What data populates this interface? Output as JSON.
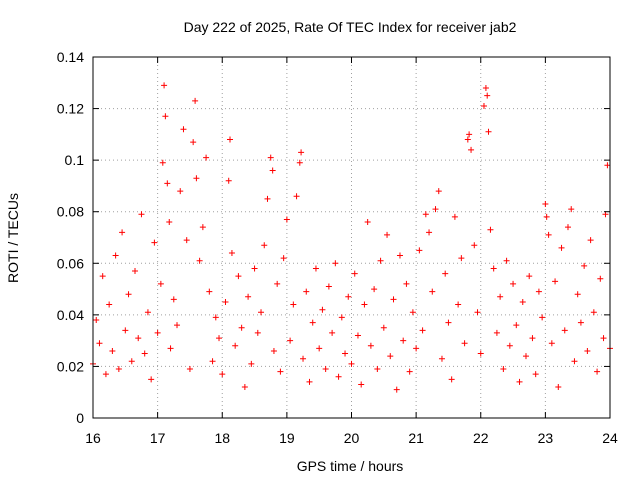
{
  "chart_data": {
    "type": "scatter",
    "title": "Day 222 of 2025, Rate Of TEC Index for receiver jab2",
    "xlabel": "GPS time / hours",
    "ylabel": "ROTI / TECUs",
    "xlim": [
      16,
      24
    ],
    "ylim": [
      0,
      0.14
    ],
    "x_ticks": [
      "16",
      "17",
      "18",
      "19",
      "20",
      "21",
      "22",
      "23",
      "24"
    ],
    "y_ticks": [
      "0",
      "0.02",
      "0.04",
      "0.06",
      "0.08",
      "0.1",
      "0.12",
      "0.14"
    ],
    "grid": true,
    "marker": "+",
    "color": "#ff0000",
    "series": [
      {
        "points": [
          [
            16.0,
            0.021
          ],
          [
            16.05,
            0.038
          ],
          [
            16.1,
            0.029
          ],
          [
            16.15,
            0.055
          ],
          [
            16.2,
            0.017
          ],
          [
            16.25,
            0.044
          ],
          [
            16.3,
            0.026
          ],
          [
            16.35,
            0.063
          ],
          [
            16.4,
            0.019
          ],
          [
            16.45,
            0.072
          ],
          [
            16.5,
            0.034
          ],
          [
            16.55,
            0.048
          ],
          [
            16.6,
            0.022
          ],
          [
            16.65,
            0.057
          ],
          [
            16.7,
            0.031
          ],
          [
            16.75,
            0.079
          ],
          [
            16.8,
            0.025
          ],
          [
            16.85,
            0.041
          ],
          [
            16.9,
            0.015
          ],
          [
            16.95,
            0.068
          ],
          [
            17.0,
            0.033
          ],
          [
            17.05,
            0.052
          ],
          [
            17.08,
            0.099
          ],
          [
            17.1,
            0.129
          ],
          [
            17.12,
            0.117
          ],
          [
            17.15,
            0.091
          ],
          [
            17.18,
            0.076
          ],
          [
            17.2,
            0.027
          ],
          [
            17.25,
            0.046
          ],
          [
            17.3,
            0.036
          ],
          [
            17.35,
            0.088
          ],
          [
            17.4,
            0.112
          ],
          [
            17.45,
            0.069
          ],
          [
            17.5,
            0.019
          ],
          [
            17.55,
            0.107
          ],
          [
            17.58,
            0.123
          ],
          [
            17.6,
            0.093
          ],
          [
            17.65,
            0.061
          ],
          [
            17.7,
            0.074
          ],
          [
            17.75,
            0.101
          ],
          [
            17.8,
            0.049
          ],
          [
            17.85,
            0.022
          ],
          [
            17.9,
            0.039
          ],
          [
            17.95,
            0.031
          ],
          [
            18.0,
            0.017
          ],
          [
            18.05,
            0.045
          ],
          [
            18.1,
            0.092
          ],
          [
            18.12,
            0.108
          ],
          [
            18.15,
            0.064
          ],
          [
            18.2,
            0.028
          ],
          [
            18.25,
            0.055
          ],
          [
            18.3,
            0.035
          ],
          [
            18.35,
            0.012
          ],
          [
            18.4,
            0.047
          ],
          [
            18.45,
            0.021
          ],
          [
            18.5,
            0.058
          ],
          [
            18.55,
            0.033
          ],
          [
            18.6,
            0.041
          ],
          [
            18.65,
            0.067
          ],
          [
            18.7,
            0.085
          ],
          [
            18.75,
            0.101
          ],
          [
            18.78,
            0.096
          ],
          [
            18.8,
            0.026
          ],
          [
            18.85,
            0.052
          ],
          [
            18.9,
            0.018
          ],
          [
            18.95,
            0.062
          ],
          [
            19.0,
            0.077
          ],
          [
            19.05,
            0.03
          ],
          [
            19.1,
            0.044
          ],
          [
            19.15,
            0.086
          ],
          [
            19.2,
            0.099
          ],
          [
            19.22,
            0.103
          ],
          [
            19.25,
            0.023
          ],
          [
            19.3,
            0.049
          ],
          [
            19.35,
            0.014
          ],
          [
            19.4,
            0.037
          ],
          [
            19.45,
            0.058
          ],
          [
            19.5,
            0.027
          ],
          [
            19.55,
            0.042
          ],
          [
            19.6,
            0.019
          ],
          [
            19.65,
            0.051
          ],
          [
            19.7,
            0.033
          ],
          [
            19.75,
            0.06
          ],
          [
            19.8,
            0.016
          ],
          [
            19.85,
            0.039
          ],
          [
            19.9,
            0.025
          ],
          [
            19.95,
            0.047
          ],
          [
            20.0,
            0.021
          ],
          [
            20.05,
            0.056
          ],
          [
            20.1,
            0.032
          ],
          [
            20.15,
            0.013
          ],
          [
            20.2,
            0.044
          ],
          [
            20.25,
            0.076
          ],
          [
            20.3,
            0.028
          ],
          [
            20.35,
            0.05
          ],
          [
            20.4,
            0.019
          ],
          [
            20.45,
            0.061
          ],
          [
            20.5,
            0.035
          ],
          [
            20.55,
            0.071
          ],
          [
            20.6,
            0.024
          ],
          [
            20.65,
            0.046
          ],
          [
            20.7,
            0.011
          ],
          [
            20.75,
            0.063
          ],
          [
            20.8,
            0.03
          ],
          [
            20.85,
            0.052
          ],
          [
            20.9,
            0.018
          ],
          [
            20.95,
            0.041
          ],
          [
            21.0,
            0.027
          ],
          [
            21.05,
            0.065
          ],
          [
            21.1,
            0.034
          ],
          [
            21.15,
            0.079
          ],
          [
            21.2,
            0.072
          ],
          [
            21.25,
            0.049
          ],
          [
            21.3,
            0.081
          ],
          [
            21.35,
            0.088
          ],
          [
            21.4,
            0.023
          ],
          [
            21.45,
            0.056
          ],
          [
            21.5,
            0.037
          ],
          [
            21.55,
            0.015
          ],
          [
            21.6,
            0.078
          ],
          [
            21.65,
            0.044
          ],
          [
            21.7,
            0.062
          ],
          [
            21.75,
            0.029
          ],
          [
            21.8,
            0.108
          ],
          [
            21.82,
            0.11
          ],
          [
            21.85,
            0.104
          ],
          [
            21.9,
            0.067
          ],
          [
            21.95,
            0.041
          ],
          [
            22.0,
            0.025
          ],
          [
            22.05,
            0.121
          ],
          [
            22.08,
            0.128
          ],
          [
            22.1,
            0.125
          ],
          [
            22.12,
            0.111
          ],
          [
            22.15,
            0.073
          ],
          [
            22.2,
            0.058
          ],
          [
            22.25,
            0.033
          ],
          [
            22.3,
            0.047
          ],
          [
            22.35,
            0.019
          ],
          [
            22.4,
            0.061
          ],
          [
            22.45,
            0.028
          ],
          [
            22.5,
            0.052
          ],
          [
            22.55,
            0.036
          ],
          [
            22.6,
            0.014
          ],
          [
            22.65,
            0.045
          ],
          [
            22.7,
            0.024
          ],
          [
            22.75,
            0.055
          ],
          [
            22.8,
            0.031
          ],
          [
            22.85,
            0.017
          ],
          [
            22.9,
            0.049
          ],
          [
            22.95,
            0.039
          ],
          [
            23.0,
            0.083
          ],
          [
            23.02,
            0.078
          ],
          [
            23.05,
            0.071
          ],
          [
            23.1,
            0.029
          ],
          [
            23.15,
            0.053
          ],
          [
            23.2,
            0.012
          ],
          [
            23.25,
            0.066
          ],
          [
            23.3,
            0.034
          ],
          [
            23.35,
            0.074
          ],
          [
            23.4,
            0.081
          ],
          [
            23.45,
            0.022
          ],
          [
            23.5,
            0.048
          ],
          [
            23.55,
            0.037
          ],
          [
            23.6,
            0.059
          ],
          [
            23.65,
            0.026
          ],
          [
            23.7,
            0.069
          ],
          [
            23.75,
            0.041
          ],
          [
            23.8,
            0.018
          ],
          [
            23.85,
            0.054
          ],
          [
            23.9,
            0.031
          ],
          [
            23.93,
            0.079
          ],
          [
            23.96,
            0.098
          ],
          [
            24.0,
            0.027
          ]
        ]
      }
    ]
  }
}
